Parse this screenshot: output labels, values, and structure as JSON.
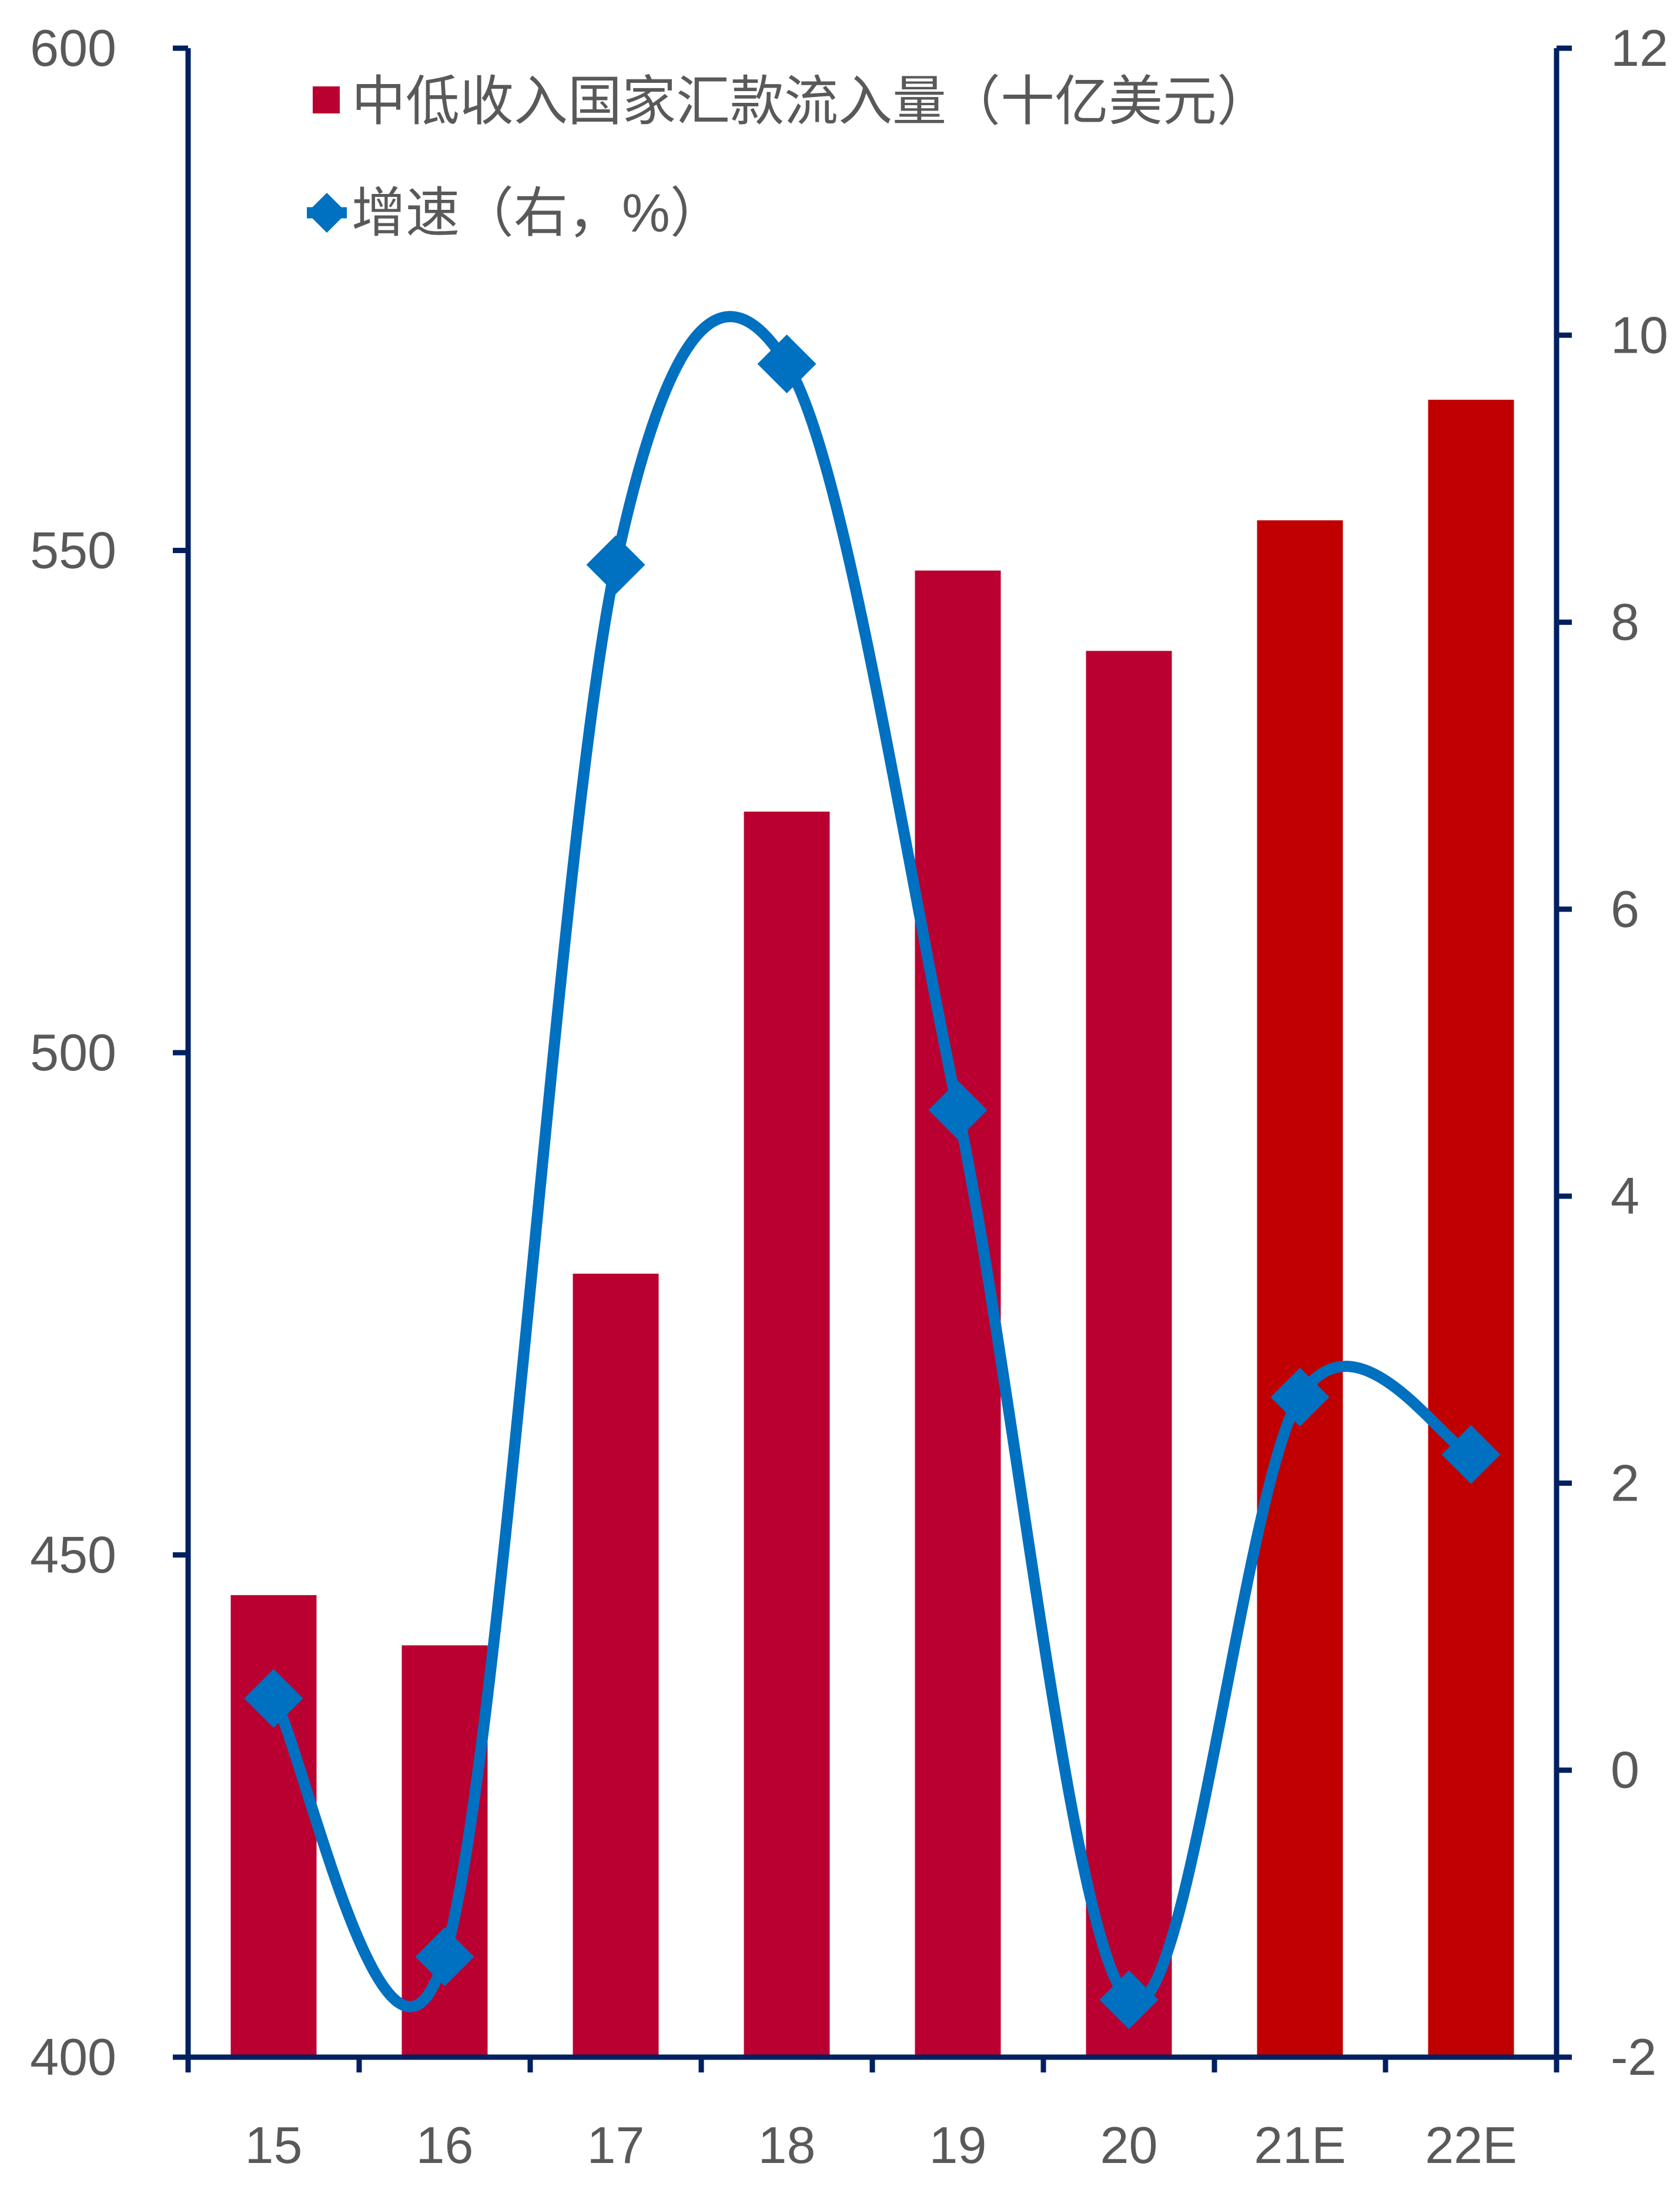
{
  "chart_data": {
    "type": "bar",
    "title": "",
    "xlabel": "",
    "ylabel": "",
    "categories": [
      "15",
      "16",
      "17",
      "18",
      "19",
      "20",
      "21E",
      "22E"
    ],
    "series": [
      {
        "name": "中低收入国家汇款流入量（十亿美元）",
        "type": "bar",
        "axis": "left",
        "values": [
          446,
          441,
          478,
          524,
          548,
          540,
          553,
          565
        ],
        "colors": [
          "#ba0030",
          "#ba0030",
          "#ba0030",
          "#ba0030",
          "#ba0030",
          "#ba0030",
          "#c00000",
          "#c00000"
        ]
      },
      {
        "name": "增速（右，%）",
        "type": "line",
        "axis": "right",
        "smooth": true,
        "marker": "diamond",
        "values": [
          0.5,
          -1.3,
          8.4,
          9.8,
          4.6,
          -1.6,
          2.6,
          2.2
        ],
        "color": "#0070c0"
      }
    ],
    "ylim": [
      400,
      600
    ],
    "yticks": [
      "400",
      "450",
      "500",
      "550",
      "600"
    ],
    "y2lim": [
      -2,
      12
    ],
    "y2ticks": [
      "-2",
      "0",
      "2",
      "4",
      "6",
      "8",
      "10",
      "12"
    ],
    "axis_color": "#002060",
    "tick_label_color": "#595959",
    "grid": false,
    "legend": {
      "placement": "top-left",
      "items": [
        {
          "label": "中低收入国家汇款流入量（十亿美元）",
          "marker": "square",
          "color": "#ba0030"
        },
        {
          "label": "增速（右，%）",
          "marker": "line-diamond",
          "color": "#0070c0"
        }
      ]
    }
  }
}
